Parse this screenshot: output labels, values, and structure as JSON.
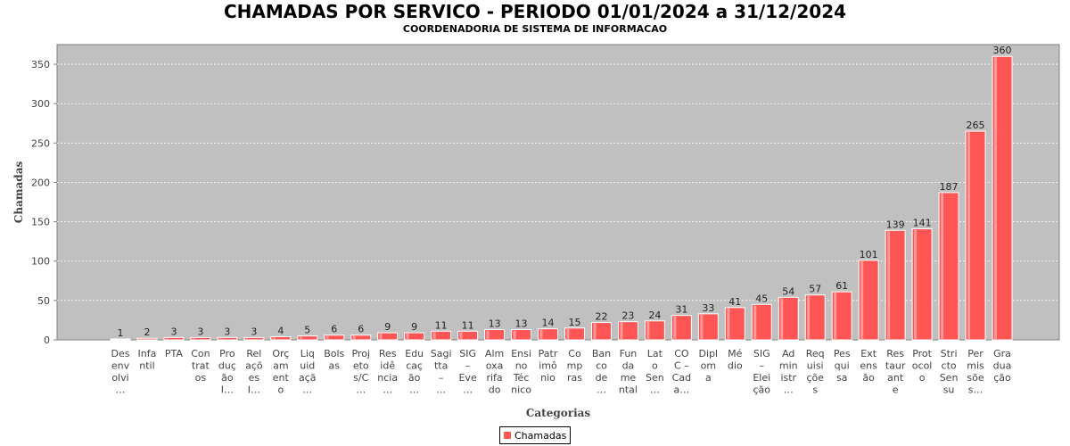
{
  "chart_data": {
    "type": "bar",
    "title": "CHAMADAS POR SERVICO - PERIODO 01/01/2024 a 31/12/2024",
    "subtitle": "COORDENADORIA DE SISTEMA DE INFORMACAO",
    "xlabel": "Categorias",
    "ylabel": "Chamadas",
    "ylim": [
      0,
      375
    ],
    "yticks": [
      0,
      50,
      100,
      150,
      200,
      250,
      300,
      350
    ],
    "grid": true,
    "legend_position": "bottom",
    "bar_color": "#ff5555",
    "categories": [
      [
        "Des",
        "env",
        "olvi",
        "…"
      ],
      [
        "Infa",
        "ntil"
      ],
      [
        "PTA"
      ],
      [
        "Con",
        "trat",
        "os"
      ],
      [
        "Pro",
        "duç",
        "ão",
        "I…"
      ],
      [
        "Rel",
        "açõ",
        "es",
        "I…"
      ],
      [
        "Orç",
        "am",
        "ent",
        "o"
      ],
      [
        "Liq",
        "uid",
        "açã",
        "…"
      ],
      [
        "Bols",
        "as"
      ],
      [
        "Proj",
        "eto",
        "s/C",
        "…"
      ],
      [
        "Res",
        "idê",
        "ncia",
        "…"
      ],
      [
        "Edu",
        "caç",
        "ão",
        "…"
      ],
      [
        "Sagi",
        "tta",
        "–",
        "…"
      ],
      [
        "SIG",
        "–",
        "Eve",
        "…"
      ],
      [
        "Alm",
        "oxa",
        "rifa",
        "do"
      ],
      [
        "Ensi",
        "no",
        "Téc",
        "nico"
      ],
      [
        "Patr",
        "imô",
        "nio"
      ],
      [
        "Co",
        "mp",
        "ras"
      ],
      [
        "Ban",
        "co",
        "de",
        "…"
      ],
      [
        "Fun",
        "da",
        "me",
        "ntal"
      ],
      [
        "Lat",
        "o",
        "Sen",
        "…"
      ],
      [
        "CO",
        "C –",
        "Cad",
        "a…"
      ],
      [
        "Dipl",
        "om",
        "a"
      ],
      [
        "Mé",
        "dio"
      ],
      [
        "SIG",
        "–",
        "Elei",
        "ção"
      ],
      [
        "Ad",
        "min",
        "istr",
        "…"
      ],
      [
        "Req",
        "uisi",
        "çõe",
        "s"
      ],
      [
        "Pes",
        "qui",
        "sa"
      ],
      [
        "Ext",
        "ens",
        "ão"
      ],
      [
        "Res",
        "taur",
        "ant",
        "e"
      ],
      [
        "Prot",
        "ocol",
        "o"
      ],
      [
        "Stri",
        "cto",
        "Sen",
        "su"
      ],
      [
        "Per",
        "mis",
        "sõe",
        "s…"
      ],
      [
        "Gra",
        "dua",
        "ção"
      ]
    ],
    "series": [
      {
        "name": "Chamadas",
        "values": [
          1,
          2,
          3,
          3,
          3,
          3,
          4,
          5,
          6,
          6,
          9,
          9,
          11,
          11,
          13,
          13,
          14,
          15,
          22,
          23,
          24,
          31,
          33,
          41,
          45,
          54,
          57,
          61,
          101,
          139,
          141,
          187,
          265,
          360
        ]
      }
    ]
  }
}
